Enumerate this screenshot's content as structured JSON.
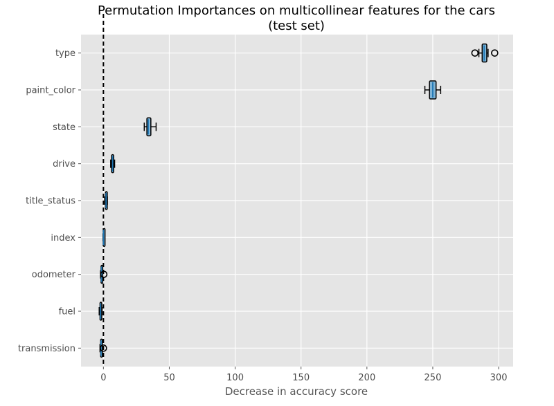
{
  "chart_data": {
    "type": "boxplot",
    "orientation": "horizontal",
    "title": "Permutation Importances on multicollinear features for the cars",
    "subtitle": "(test set)",
    "xlabel": "Decrease in accuracy score",
    "ylabel": "",
    "xlim": [
      -17,
      311
    ],
    "xticks": [
      0,
      50,
      100,
      150,
      200,
      250,
      300
    ],
    "grid": true,
    "reference_line": {
      "x": 0,
      "style": "dashed",
      "color": "#000000"
    },
    "box_fill": "#7fb3d5",
    "box_edge": "#000000",
    "median_color": "#1f77b4",
    "background": "#e5e5e5",
    "categories": [
      "type",
      "paint_color",
      "state",
      "drive",
      "title_status",
      "index",
      "odometer",
      "fuel",
      "transmission"
    ],
    "boxes": [
      {
        "label": "type",
        "whislo": 285,
        "q1": 287.5,
        "med": 289,
        "q3": 291,
        "whishi": 292,
        "fliers": [
          282,
          297
        ]
      },
      {
        "label": "paint_color",
        "whislo": 244,
        "q1": 247.5,
        "med": 250,
        "q3": 252.5,
        "whishi": 256,
        "fliers": []
      },
      {
        "label": "state",
        "whislo": 31,
        "q1": 33,
        "med": 34,
        "q3": 36,
        "whishi": 40,
        "fliers": []
      },
      {
        "label": "drive",
        "whislo": 5.5,
        "q1": 6.2,
        "med": 7,
        "q3": 7.8,
        "whishi": 8.5,
        "fliers": []
      },
      {
        "label": "title_status",
        "whislo": 1,
        "q1": 1.6,
        "med": 2,
        "q3": 2.5,
        "whishi": 3,
        "fliers": []
      },
      {
        "label": "index",
        "whislo": -0.3,
        "q1": -0.1,
        "med": 0,
        "q3": 0.1,
        "whishi": 0.3,
        "fliers": []
      },
      {
        "label": "odometer",
        "whislo": -2.2,
        "q1": -1.8,
        "med": -1.5,
        "q3": -1.2,
        "whishi": -0.8,
        "fliers": [
          0.3
        ]
      },
      {
        "label": "fuel",
        "whislo": -3.2,
        "q1": -2.6,
        "med": -2.2,
        "q3": -1.7,
        "whishi": -1,
        "fliers": []
      },
      {
        "label": "transmission",
        "whislo": -2.6,
        "q1": -2.1,
        "med": -1.8,
        "q3": -1.5,
        "whishi": -1.2,
        "fliers": [
          0
        ]
      }
    ]
  }
}
